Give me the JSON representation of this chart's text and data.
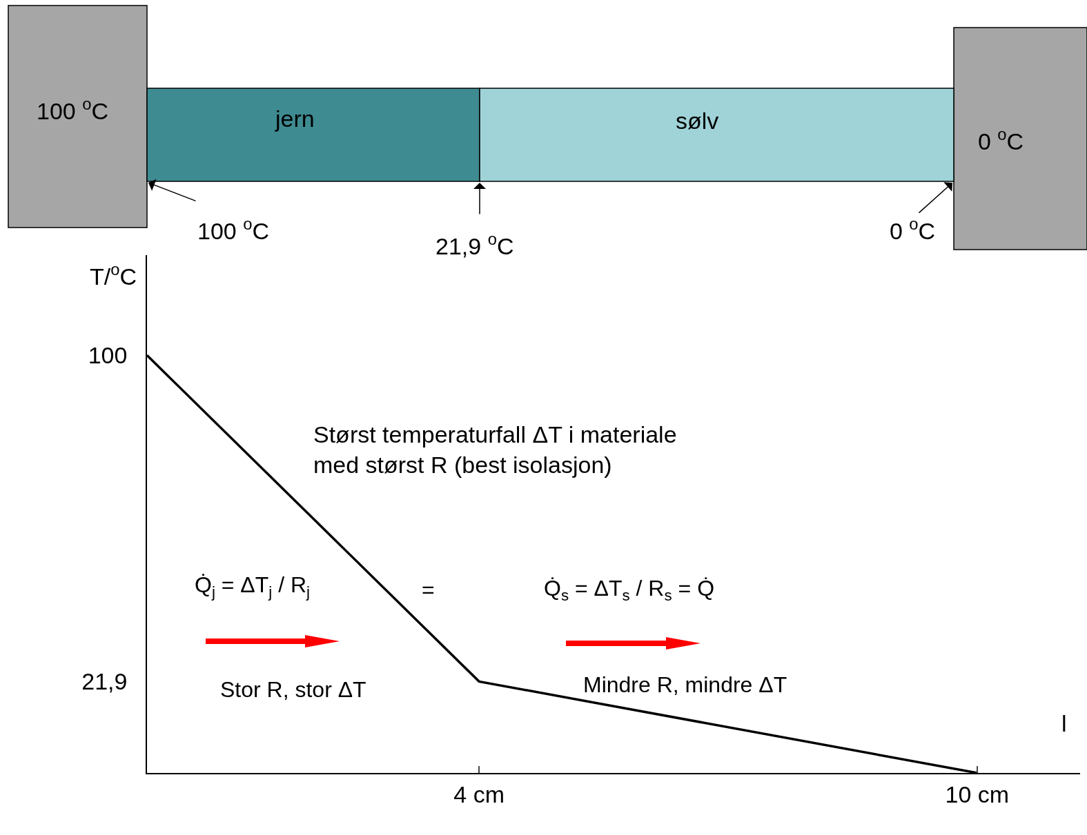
{
  "chart_data": {
    "type": "line",
    "xlabel": "l",
    "ylabel": "T/$^{o}$C",
    "x": [
      0,
      4,
      10
    ],
    "series": [
      {
        "color": "#000000",
        "values": [
          100,
          21.9,
          0
        ]
      }
    ],
    "xlim": [
      0,
      11.24
    ],
    "ylim": [
      0,
      124
    ],
    "xticks": [
      {
        "value": 4,
        "label": "4 cm"
      },
      {
        "value": 10,
        "label": "10 cm"
      }
    ],
    "yticks": [
      {
        "value": 21.9,
        "label": "21,9"
      },
      100
    ],
    "marker": "none",
    "line_style": "solid",
    "annotations": [
      "100 $^{o}$C",
      "jern",
      "sølv",
      "0 $^{o}$C",
      "100 $^{o}$C",
      "21,9 $^{o}$C",
      "0 $^{o}$C",
      "Størst temperaturfall ΔT i materiale\nmed størst R (best isolasjon)",
      "Q̇$_{j}$ = ΔT$_{j}$ / R$_{j}$",
      "=",
      "Q̇$_{s}$ = ΔT$_{s}$ / R$_{s}$ = Q̇",
      "Stor R, stor ΔT",
      "Mindre R, mindre ΔT"
    ]
  }
}
